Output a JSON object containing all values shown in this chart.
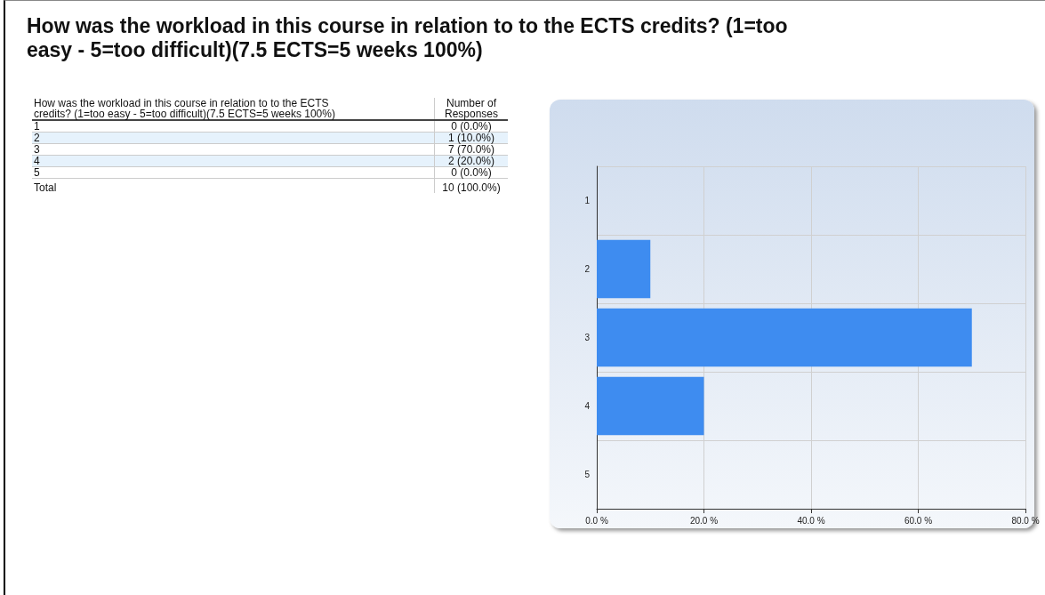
{
  "chart_data": {
    "type": "bar",
    "orientation": "horizontal",
    "title": "How was the workload in this course in relation to to the ECTS credits? (1=too easy - 5=too difficult)(7.5 ECTS=5 weeks 100%)",
    "categories": [
      "1",
      "2",
      "3",
      "4",
      "5"
    ],
    "values": [
      0,
      10,
      70,
      20,
      0
    ],
    "color": "#3e8cf0",
    "xlim": [
      0,
      80
    ],
    "xticks": [
      {
        "value": 0,
        "label": "0.0 %"
      },
      {
        "value": 20,
        "label": "20.0 %"
      },
      {
        "value": 40,
        "label": "40.0 %"
      },
      {
        "value": 60,
        "label": "60.0 %"
      },
      {
        "value": 80,
        "label": "80.0 %"
      }
    ],
    "grid": true,
    "annotations": [
      "How was the workload in this course in relation to to the ECTS credits? (1=too easy - 5=too difficult)(7.5 ECTS=5 weeks 100%)",
      "Number of Responses",
      "Total",
      "10 (100.0%)",
      "0 (0.0%)",
      "1 (10.0%)",
      "7 (70.0%)",
      "2 (20.0%)",
      "0 (0.0%)"
    ]
  }
}
